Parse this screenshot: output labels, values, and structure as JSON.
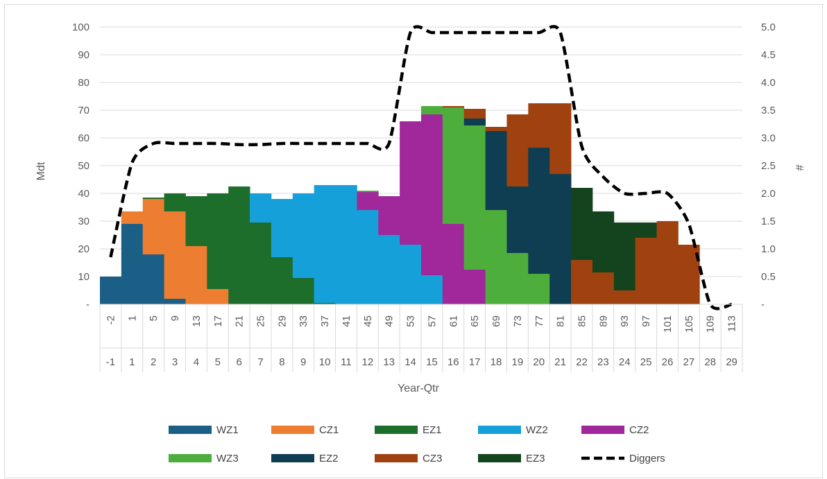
{
  "chart_data": {
    "type": "bar",
    "stacked": true,
    "categories_level1": [
      "-2",
      "1",
      "5",
      "9",
      "13",
      "17",
      "21",
      "25",
      "29",
      "33",
      "37",
      "41",
      "45",
      "49",
      "53",
      "57",
      "61",
      "65",
      "69",
      "73",
      "77",
      "81",
      "85",
      "89",
      "93",
      "97",
      "101",
      "105",
      "109",
      "113"
    ],
    "categories_level2": [
      "-1",
      "1",
      "2",
      "3",
      "4",
      "5",
      "6",
      "7",
      "8",
      "9",
      "10",
      "11",
      "12",
      "13",
      "14",
      "15",
      "16",
      "17",
      "18",
      "19",
      "20",
      "21",
      "22",
      "23",
      "24",
      "25",
      "26",
      "27",
      "28",
      "29"
    ],
    "xlabel": "Year-Qtr",
    "ylabel": "Mdt",
    "y2label": "#",
    "ylim": [
      0,
      100
    ],
    "y_ticks": [
      "-",
      "10",
      "20",
      "30",
      "40",
      "50",
      "60",
      "70",
      "80",
      "90",
      "100"
    ],
    "y2lim": [
      0,
      5
    ],
    "y2_ticks": [
      "-",
      "0.5",
      "1.0",
      "1.5",
      "2.0",
      "2.5",
      "3.0",
      "3.5",
      "4.0",
      "4.5",
      "5.0"
    ],
    "grid": "horizontal",
    "legend_position": "bottom",
    "series": [
      {
        "name": "WZ1",
        "color": "#1b5f86",
        "values": [
          10,
          29,
          18,
          2,
          0,
          0,
          0,
          0,
          0,
          0,
          0,
          0,
          0,
          0,
          0,
          0,
          0,
          0,
          0,
          0,
          0,
          0,
          0,
          0,
          0,
          0,
          0,
          0,
          0,
          0
        ]
      },
      {
        "name": "CZ1",
        "color": "#ed7d31",
        "values": [
          0,
          4.5,
          20,
          31.5,
          21,
          5.5,
          0,
          0,
          0,
          0,
          0,
          0,
          0,
          0,
          0,
          0,
          0,
          0,
          0,
          0,
          0,
          0,
          0,
          0,
          0,
          0,
          0,
          0,
          0,
          0
        ]
      },
      {
        "name": "EZ1",
        "color": "#1e6e2b",
        "values": [
          0,
          0,
          0.5,
          6.5,
          18,
          34.5,
          42.5,
          29.5,
          17,
          9.5,
          0.5,
          0,
          0,
          0,
          0,
          0,
          0,
          0,
          0,
          0,
          0,
          0,
          0,
          0,
          0,
          0,
          0,
          0,
          0,
          0
        ]
      },
      {
        "name": "WZ2",
        "color": "#15a0d9",
        "values": [
          0,
          0,
          0,
          0,
          0,
          0,
          0,
          10.5,
          21,
          30.5,
          42.5,
          43,
          34,
          25,
          21.5,
          10.5,
          0,
          0,
          0,
          0,
          0,
          0,
          0,
          0,
          0,
          0,
          0,
          0,
          0,
          0
        ]
      },
      {
        "name": "CZ2",
        "color": "#a0289b",
        "values": [
          0,
          0,
          0,
          0,
          0,
          0,
          0,
          0,
          0,
          0,
          0,
          0,
          6.5,
          14,
          44.5,
          58,
          29,
          12.5,
          0,
          0,
          0,
          0,
          0,
          0,
          0,
          0,
          0,
          0,
          0,
          0
        ]
      },
      {
        "name": "WZ3",
        "color": "#4eae3c",
        "values": [
          0,
          0,
          0,
          0,
          0,
          0,
          0,
          0,
          0,
          0,
          0,
          0,
          0.5,
          0,
          0,
          3,
          42,
          52,
          34,
          18.5,
          11,
          0,
          0,
          0,
          0,
          0,
          0,
          0,
          0,
          0
        ]
      },
      {
        "name": "EZ2",
        "color": "#0f3d52",
        "values": [
          0,
          0,
          0,
          0,
          0,
          0,
          0,
          0,
          0,
          0,
          0,
          0,
          0,
          0,
          0,
          0,
          0,
          2.5,
          28.5,
          24,
          45.5,
          47,
          0,
          0,
          0,
          0,
          0,
          0,
          0,
          0
        ]
      },
      {
        "name": "CZ3",
        "color": "#a0420f",
        "values": [
          0,
          0,
          0,
          0,
          0,
          0,
          0,
          0,
          0,
          0,
          0,
          0,
          0,
          0,
          0,
          0,
          0.5,
          3.5,
          1.5,
          26,
          16,
          25.5,
          16,
          11.5,
          5,
          24,
          30,
          21.5,
          0,
          0
        ]
      },
      {
        "name": "EZ3",
        "color": "#14441d",
        "values": [
          0,
          0,
          0,
          0,
          0,
          0,
          0,
          0,
          0,
          0,
          0,
          0,
          0,
          0,
          0,
          0,
          0,
          0,
          0,
          0,
          0,
          0,
          26,
          22,
          24.5,
          5.5,
          0,
          0,
          0,
          0
        ]
      }
    ],
    "line_series": {
      "name": "Diggers",
      "axis": "secondary",
      "color": "#000000",
      "values": [
        0.85,
        2.55,
        2.9,
        2.9,
        2.9,
        2.9,
        2.88,
        2.88,
        2.9,
        2.9,
        2.9,
        2.9,
        2.9,
        2.9,
        4.9,
        4.9,
        4.9,
        4.9,
        4.9,
        4.9,
        4.9,
        4.9,
        2.85,
        2.3,
        2.0,
        2.0,
        2.0,
        1.45,
        0,
        0
      ]
    }
  }
}
